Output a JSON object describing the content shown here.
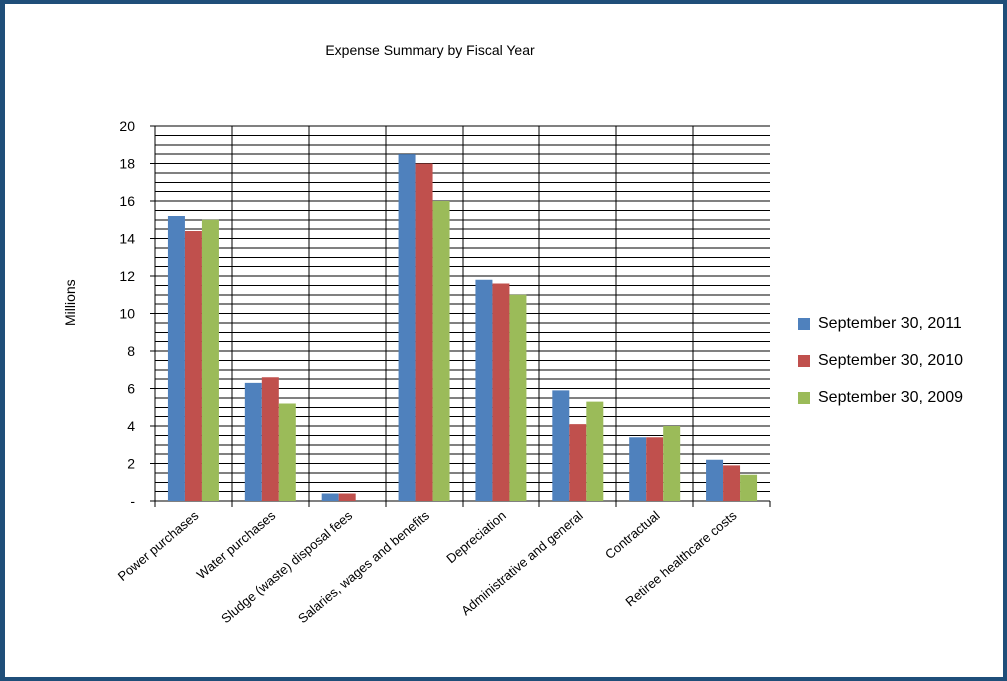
{
  "chart_data": {
    "type": "bar",
    "title": "Expense Summary by Fiscal Year",
    "ylabel": "Millions",
    "xlabel": "",
    "ylim": [
      0,
      20
    ],
    "y_ticks": [
      "-",
      "2",
      "4",
      "6",
      "8",
      "10",
      "12",
      "14",
      "16",
      "18",
      "20"
    ],
    "y_minor_step": 0.5,
    "grid": true,
    "legend_position": "right",
    "categories": [
      "Power purchases",
      "Water purchases",
      "Sludge (waste) disposal fees",
      "Salaries, wages and benefits",
      "Depreciation",
      "Administrative and general",
      "Contractual",
      "Retiree healthcare costs"
    ],
    "series": [
      {
        "name": "September 30, 2011",
        "color": "#4f81bd",
        "values": [
          15.2,
          6.3,
          0.4,
          18.5,
          11.8,
          5.9,
          3.4,
          2.2
        ]
      },
      {
        "name": "September 30, 2010",
        "color": "#c0504d",
        "values": [
          14.4,
          6.6,
          0.4,
          18.0,
          11.6,
          4.1,
          3.4,
          1.9
        ]
      },
      {
        "name": "September 30, 2009",
        "color": "#9bbb59",
        "values": [
          15.0,
          5.2,
          0.0,
          16.0,
          11.0,
          5.3,
          4.0,
          1.4
        ]
      }
    ]
  }
}
